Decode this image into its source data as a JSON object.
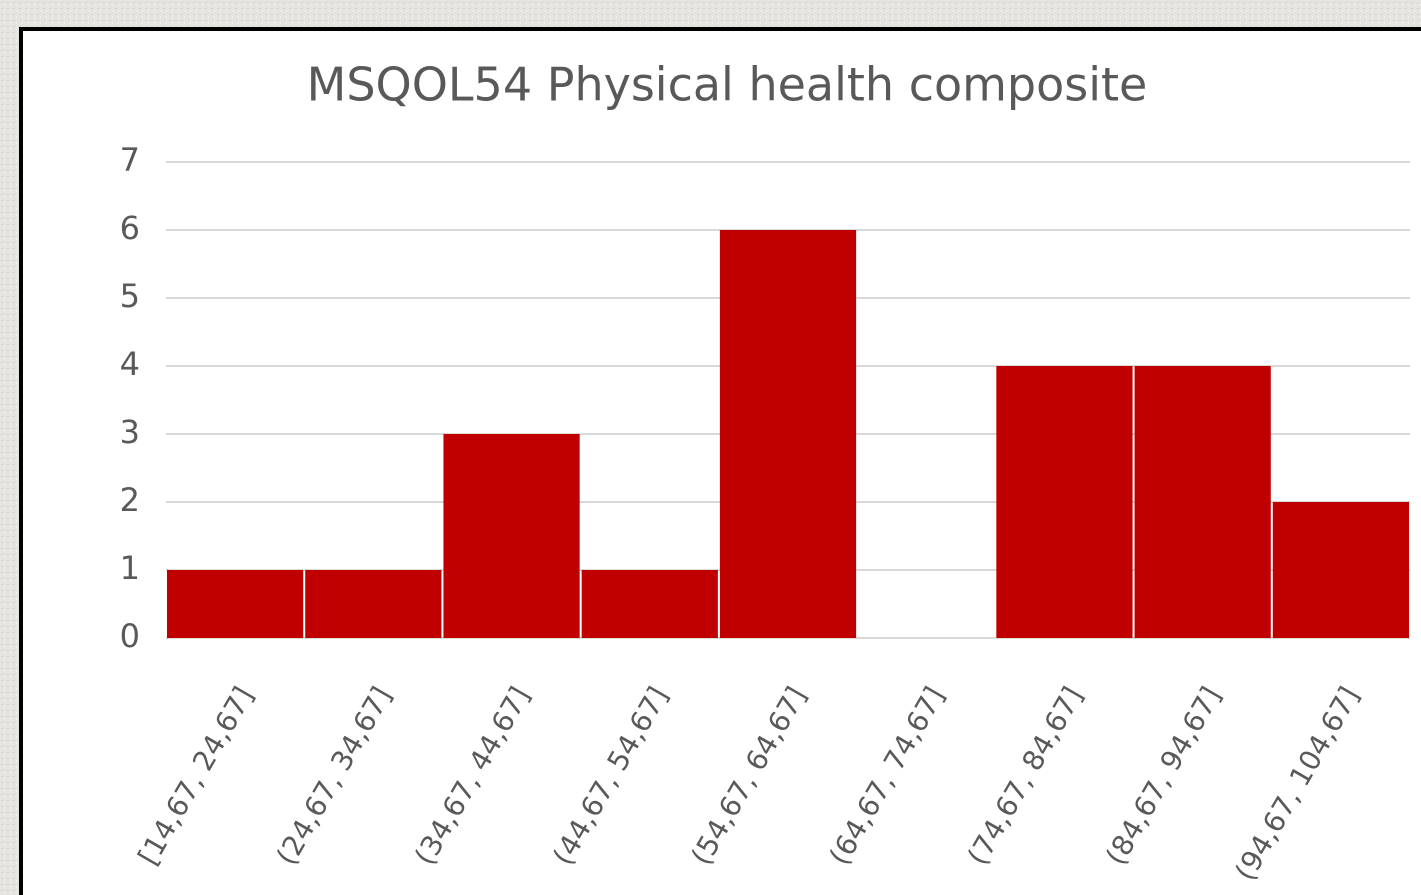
{
  "chart_data": {
    "type": "bar",
    "title": "MSQOL54 Physical health composite",
    "categories": [
      "[14,67, 24,67]",
      "(24,67, 34,67]",
      "(34,67, 44,67]",
      "(44,67, 54,67]",
      "(54,67, 64,67]",
      "(64,67, 74,67]",
      "(74,67, 84,67]",
      "(84,67, 94,67]",
      "(94,67, 104,67]"
    ],
    "values": [
      1,
      1,
      3,
      1,
      6,
      0,
      4,
      4,
      2
    ],
    "color": "#c00000",
    "ylim": [
      0,
      7
    ],
    "yticks": [
      0,
      1,
      2,
      3,
      4,
      5,
      6,
      7
    ],
    "grid": true
  }
}
